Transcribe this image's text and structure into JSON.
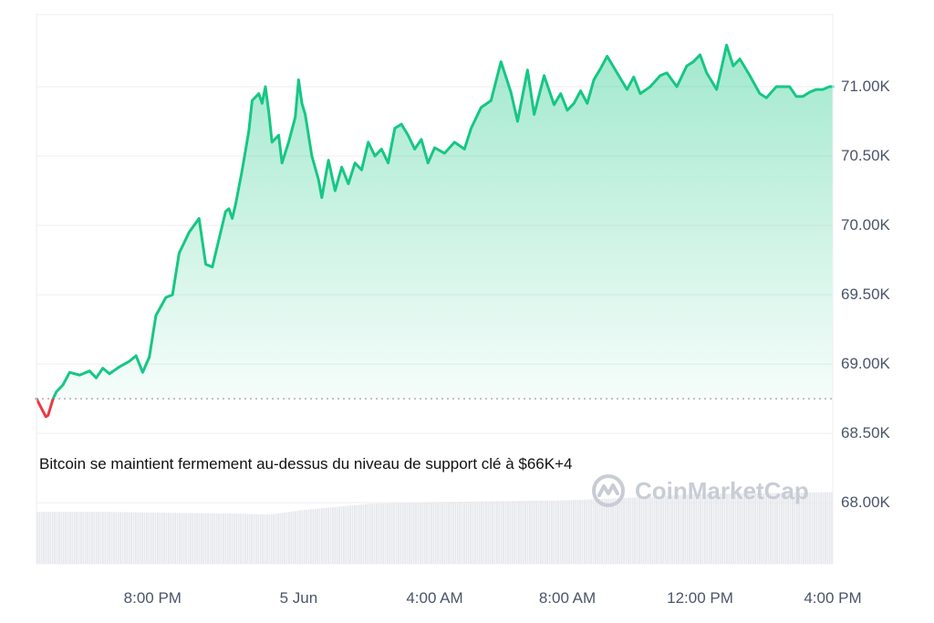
{
  "chart_data": {
    "type": "area",
    "title": "",
    "xlabel": "",
    "ylabel": "",
    "y_ticks": [
      "68.00K",
      "68.50K",
      "69.00K",
      "69.50K",
      "70.00K",
      "70.50K",
      "71.00K"
    ],
    "y_tick_values": [
      68000,
      68500,
      69000,
      69500,
      70000,
      70500,
      71000
    ],
    "x_ticks": [
      "8:00 PM",
      "5 Jun",
      "4:00 AM",
      "8:00 AM",
      "12:00 PM",
      "4:00 PM"
    ],
    "x_tick_hours": [
      3.5,
      7.9,
      12,
      16,
      20,
      24
    ],
    "ylim": [
      67560,
      71520
    ],
    "xlim": [
      0,
      24
    ],
    "baseline": 68750,
    "grid": true,
    "x_unit": "hours since start of visible range",
    "up_color": "#16c784",
    "down_color": "#ea3943",
    "series": [
      {
        "x": [
          0,
          0.28,
          0.35,
          0.5,
          0.6,
          0.8,
          1.0,
          1.3,
          1.6,
          1.8,
          2.0,
          2.2,
          2.5,
          2.8,
          3.0,
          3.2,
          3.4,
          3.6,
          3.9,
          4.1,
          4.3,
          4.6,
          4.9,
          5.1,
          5.3,
          5.5,
          5.7,
          5.8,
          5.9,
          6.0,
          6.2,
          6.4,
          6.5,
          6.7,
          6.8,
          6.9,
          7.0,
          7.1,
          7.3,
          7.4,
          7.6,
          7.8,
          7.9,
          8.0,
          8.1,
          8.3,
          8.5,
          8.6,
          8.8,
          9.0,
          9.2,
          9.4,
          9.6,
          9.8,
          10.0,
          10.2,
          10.4,
          10.6,
          10.8,
          11.0,
          11.2,
          11.4,
          11.6,
          11.8,
          12.0,
          12.3,
          12.6,
          12.9,
          13.1,
          13.4,
          13.7,
          14.0,
          14.3,
          14.5,
          14.8,
          15.0,
          15.3,
          15.6,
          15.8,
          16.0,
          16.2,
          16.4,
          16.6,
          16.8,
          17.0,
          17.2,
          17.5,
          17.8,
          18.0,
          18.2,
          18.5,
          18.8,
          19.0,
          19.3,
          19.6,
          19.8,
          20.0,
          20.2,
          20.5,
          20.8,
          21.0,
          21.2,
          21.5,
          21.8,
          22.0,
          22.3,
          22.5,
          22.7,
          22.9,
          23.1,
          23.3,
          23.5,
          23.7,
          23.9,
          24.0
        ],
        "y": [
          68750,
          68620,
          68630,
          68750,
          68800,
          68850,
          68940,
          68920,
          68950,
          68900,
          68970,
          68930,
          68980,
          69020,
          69060,
          68940,
          69050,
          69350,
          69480,
          69500,
          69800,
          69950,
          70050,
          69720,
          69700,
          69900,
          70100,
          70120,
          70050,
          70150,
          70400,
          70680,
          70900,
          70950,
          70880,
          71000,
          70820,
          70600,
          70650,
          70450,
          70600,
          70780,
          71050,
          70880,
          70800,
          70500,
          70330,
          70200,
          70470,
          70250,
          70420,
          70300,
          70450,
          70400,
          70600,
          70500,
          70550,
          70450,
          70700,
          70730,
          70650,
          70550,
          70620,
          70450,
          70560,
          70520,
          70600,
          70550,
          70700,
          70850,
          70900,
          71180,
          70960,
          70750,
          71120,
          70800,
          71080,
          70870,
          70950,
          70830,
          70880,
          70970,
          70880,
          71050,
          71130,
          71220,
          71100,
          70980,
          71070,
          70950,
          71000,
          71080,
          71100,
          71000,
          71150,
          71180,
          71230,
          71100,
          70980,
          71300,
          71150,
          71200,
          71080,
          70950,
          70920,
          71000,
          71000,
          71000,
          70930,
          70930,
          70960,
          70980,
          70980,
          71000,
          71000
        ]
      }
    ],
    "volume": {
      "x": [
        0,
        2,
        4,
        6,
        7.0,
        8,
        10,
        12,
        14,
        16,
        18,
        20,
        22,
        24
      ],
      "relative": [
        0.58,
        0.58,
        0.57,
        0.56,
        0.55,
        0.6,
        0.67,
        0.69,
        0.7,
        0.71,
        0.74,
        0.78,
        0.79,
        0.8
      ]
    }
  },
  "caption": "Bitcoin se maintient fermement au-dessus du niveau de support clé à $66K+4",
  "watermark": "CoinMarketCap"
}
